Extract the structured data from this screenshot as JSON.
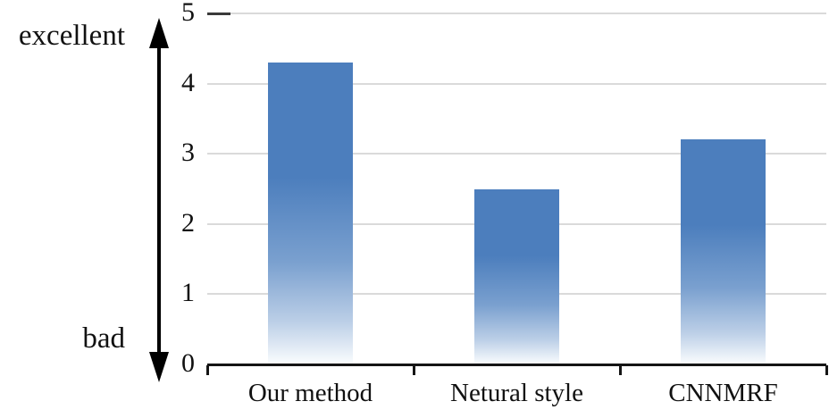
{
  "chart_data": {
    "type": "bar",
    "categories": [
      "Our method",
      "Netural style",
      "CNNMRF"
    ],
    "values": [
      4.3,
      2.5,
      3.2
    ],
    "title": "",
    "xlabel": "",
    "ylabel": "",
    "ylim": [
      0,
      5
    ],
    "yticks": [
      0,
      1,
      2,
      3,
      4,
      5
    ],
    "grid": true,
    "legend_position": "none",
    "bar_color_top": "#4c7ebd",
    "bar_color_mid": "#7aa0cf",
    "bar_color_fade": "#bccfe7",
    "bar_color_bottom": "#fbfdfe",
    "gridline_color": "#dadada",
    "axis_color": "#151515"
  },
  "annotations": {
    "top_label": "excellent",
    "bottom_label": "bad"
  }
}
